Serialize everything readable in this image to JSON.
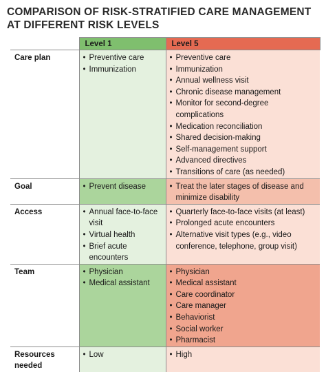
{
  "title": {
    "line1": "COMPARISON OF RISK-STRATIFIED CARE MANAGEMENT",
    "line2": "AT DIFFERENT RISK LEVELS"
  },
  "columns": {
    "empty": "",
    "level1": "Level 1",
    "level5": "Level 5"
  },
  "rows": [
    {
      "label": "Care plan",
      "level1": [
        "Preventive care",
        "Immunization"
      ],
      "level5": [
        "Preventive care",
        "Immunization",
        "Annual wellness visit",
        "Chronic disease management",
        "Monitor for second-degree complications",
        "Medication reconciliation",
        "Shared decision-making",
        "Self-management support",
        "Advanced directives",
        "Transitions of care (as needed)"
      ]
    },
    {
      "label": "Goal",
      "level1": [
        "Prevent disease"
      ],
      "level5": [
        "Treat the later stages of disease and minimize disability"
      ]
    },
    {
      "label": "Access",
      "level1": [
        "Annual face-to-face visit",
        "Virtual health",
        "Brief acute encounters"
      ],
      "level5": [
        "Quarterly face-to-face visits (at least)",
        "Prolonged acute encounters",
        "Alternative visit types (e.g., video conference, telephone, group visit)"
      ]
    },
    {
      "label": "Team",
      "level1": [
        "Physician",
        "Medical assistant"
      ],
      "level5": [
        "Physician",
        "Medical assistant",
        "Care coordinator",
        "Care manager",
        "Behaviorist",
        "Social worker",
        "Pharmacist"
      ]
    },
    {
      "label": "Resources needed",
      "level1": [
        "Low"
      ],
      "level5": [
        "High"
      ]
    }
  ],
  "colors": {
    "level1_header": "#7fbf6e",
    "level5_header": "#e56a52",
    "level1_light": "#e4f1df",
    "level1_mid": "#abd59c",
    "level5_light": "#fbe0d6",
    "level5_mid": "#f4bfac",
    "level5_dark": "#f0a58e"
  }
}
